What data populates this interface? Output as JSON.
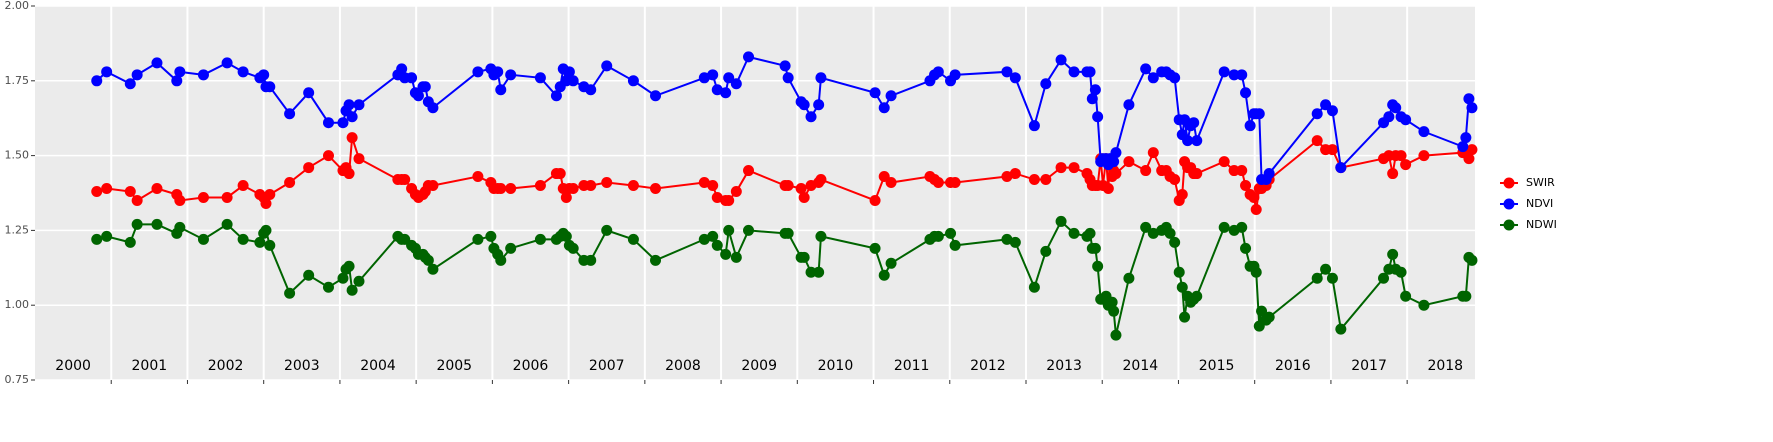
{
  "chart_data": {
    "type": "line",
    "x": [
      2000.81,
      2000.94,
      2001.25,
      2001.34,
      2001.6,
      2001.86,
      2001.9,
      2002.21,
      2002.52,
      2002.73,
      2002.95,
      2003.0,
      2003.03,
      2003.08,
      2003.34,
      2003.59,
      2003.85,
      2004.04,
      2004.08,
      2004.12,
      2004.16,
      2004.25,
      2004.76,
      2004.81,
      2004.85,
      2004.94,
      2004.99,
      2005.03,
      2005.09,
      2005.12,
      2005.16,
      2005.22,
      2005.81,
      2005.98,
      2006.02,
      2006.07,
      2006.11,
      2006.24,
      2006.63,
      2006.84,
      2006.89,
      2006.93,
      2006.97,
      2007.01,
      2007.06,
      2007.2,
      2007.29,
      2007.5,
      2007.85,
      2008.14,
      2008.78,
      2008.89,
      2008.95,
      2009.06,
      2009.1,
      2009.2,
      2009.36,
      2009.84,
      2009.88,
      2010.05,
      2010.09,
      2010.18,
      2010.28,
      2010.31,
      2011.02,
      2011.14,
      2011.23,
      2011.74,
      2011.8,
      2011.85,
      2012.01,
      2012.07,
      2012.75,
      2012.86,
      2013.11,
      2013.26,
      2013.46,
      2013.63,
      2013.8,
      2013.84,
      2013.87,
      2013.91,
      2013.94,
      2013.98,
      2014.01,
      2014.05,
      2014.08,
      2014.1,
      2014.13,
      2014.15,
      2014.18,
      2014.35,
      2014.57,
      2014.67,
      2014.78,
      2014.84,
      2014.89,
      2014.95,
      2015.01,
      2015.05,
      2015.08,
      2015.12,
      2015.16,
      2015.2,
      2015.24,
      2015.6,
      2015.73,
      2015.83,
      2015.88,
      2015.94,
      2015.99,
      2016.02,
      2016.06,
      2016.09,
      2016.15,
      2016.19,
      2016.82,
      2016.93,
      2017.02,
      2017.13,
      2017.69,
      2017.76,
      2017.81,
      2017.85,
      2017.92,
      2017.98,
      2018.22,
      2018.73,
      2018.77,
      2018.81,
      2018.85
    ],
    "series": [
      {
        "name": "SWIR",
        "color": "#ff0000",
        "values": [
          1.38,
          1.39,
          1.38,
          1.35,
          1.39,
          1.37,
          1.35,
          1.36,
          1.36,
          1.4,
          1.37,
          1.36,
          1.34,
          1.37,
          1.41,
          1.46,
          1.5,
          1.45,
          1.46,
          1.44,
          1.56,
          1.49,
          1.42,
          1.42,
          1.42,
          1.39,
          1.37,
          1.36,
          1.37,
          1.38,
          1.4,
          1.4,
          1.43,
          1.41,
          1.39,
          1.39,
          1.39,
          1.39,
          1.4,
          1.44,
          1.44,
          1.39,
          1.36,
          1.39,
          1.39,
          1.4,
          1.4,
          1.41,
          1.4,
          1.39,
          1.41,
          1.4,
          1.36,
          1.35,
          1.35,
          1.38,
          1.45,
          1.4,
          1.4,
          1.39,
          1.36,
          1.4,
          1.41,
          1.42,
          1.35,
          1.43,
          1.41,
          1.43,
          1.42,
          1.41,
          1.41,
          1.41,
          1.43,
          1.44,
          1.42,
          1.42,
          1.46,
          1.46,
          1.44,
          1.42,
          1.4,
          1.4,
          1.4,
          1.49,
          1.4,
          1.49,
          1.39,
          1.48,
          1.43,
          1.45,
          1.44,
          1.48,
          1.45,
          1.51,
          1.45,
          1.45,
          1.43,
          1.42,
          1.35,
          1.37,
          1.48,
          1.46,
          1.46,
          1.44,
          1.44,
          1.48,
          1.45,
          1.45,
          1.4,
          1.37,
          1.36,
          1.32,
          1.39,
          1.39,
          1.4,
          1.42,
          1.55,
          1.52,
          1.52,
          1.46,
          1.49,
          1.5,
          1.44,
          1.5,
          1.5,
          1.47,
          1.5,
          1.51,
          1.51,
          1.49,
          1.52
        ]
      },
      {
        "name": "NDVI",
        "color": "#0000ff",
        "values": [
          1.75,
          1.78,
          1.74,
          1.77,
          1.81,
          1.75,
          1.78,
          1.77,
          1.81,
          1.78,
          1.76,
          1.77,
          1.73,
          1.73,
          1.64,
          1.71,
          1.61,
          1.61,
          1.65,
          1.67,
          1.63,
          1.67,
          1.77,
          1.79,
          1.76,
          1.76,
          1.71,
          1.7,
          1.73,
          1.73,
          1.68,
          1.66,
          1.78,
          1.79,
          1.77,
          1.78,
          1.72,
          1.77,
          1.76,
          1.7,
          1.73,
          1.79,
          1.75,
          1.78,
          1.75,
          1.73,
          1.72,
          1.8,
          1.75,
          1.7,
          1.76,
          1.77,
          1.72,
          1.71,
          1.76,
          1.74,
          1.83,
          1.8,
          1.76,
          1.68,
          1.67,
          1.63,
          1.67,
          1.76,
          1.71,
          1.66,
          1.7,
          1.75,
          1.77,
          1.78,
          1.75,
          1.77,
          1.78,
          1.76,
          1.6,
          1.74,
          1.82,
          1.78,
          1.78,
          1.78,
          1.69,
          1.72,
          1.63,
          1.48,
          1.49,
          1.49,
          1.47,
          1.49,
          1.49,
          1.48,
          1.51,
          1.67,
          1.79,
          1.76,
          1.78,
          1.78,
          1.77,
          1.76,
          1.62,
          1.57,
          1.62,
          1.55,
          1.6,
          1.61,
          1.55,
          1.78,
          1.77,
          1.77,
          1.71,
          1.6,
          1.64,
          1.64,
          1.64,
          1.42,
          1.42,
          1.44,
          1.64,
          1.67,
          1.65,
          1.46,
          1.61,
          1.63,
          1.67,
          1.66,
          1.63,
          1.62,
          1.58,
          1.53,
          1.56,
          1.69,
          1.66
        ]
      },
      {
        "name": "NDWI",
        "color": "#006400",
        "values": [
          1.22,
          1.23,
          1.21,
          1.27,
          1.27,
          1.24,
          1.26,
          1.22,
          1.27,
          1.22,
          1.21,
          1.24,
          1.25,
          1.2,
          1.04,
          1.1,
          1.06,
          1.09,
          1.12,
          1.13,
          1.05,
          1.08,
          1.23,
          1.22,
          1.22,
          1.2,
          1.19,
          1.17,
          1.17,
          1.16,
          1.15,
          1.12,
          1.22,
          1.23,
          1.19,
          1.17,
          1.15,
          1.19,
          1.22,
          1.22,
          1.23,
          1.24,
          1.23,
          1.2,
          1.19,
          1.15,
          1.15,
          1.25,
          1.22,
          1.15,
          1.22,
          1.23,
          1.2,
          1.17,
          1.25,
          1.16,
          1.25,
          1.24,
          1.24,
          1.16,
          1.16,
          1.11,
          1.11,
          1.23,
          1.19,
          1.1,
          1.14,
          1.22,
          1.23,
          1.23,
          1.24,
          1.2,
          1.22,
          1.21,
          1.06,
          1.18,
          1.28,
          1.24,
          1.23,
          1.24,
          1.19,
          1.19,
          1.13,
          1.02,
          1.02,
          1.03,
          1.0,
          1.01,
          1.01,
          0.98,
          0.9,
          1.09,
          1.26,
          1.24,
          1.25,
          1.26,
          1.24,
          1.21,
          1.11,
          1.06,
          0.96,
          1.03,
          1.01,
          1.02,
          1.03,
          1.26,
          1.25,
          1.26,
          1.19,
          1.13,
          1.13,
          1.11,
          0.93,
          0.98,
          0.95,
          0.96,
          1.09,
          1.12,
          1.09,
          0.92,
          1.09,
          1.12,
          1.17,
          1.12,
          1.11,
          1.03,
          1.0,
          1.03,
          1.03,
          1.16,
          1.15
        ]
      }
    ],
    "xlim": [
      2000,
      2018.89
    ],
    "xticks": [
      2001,
      2002,
      2003,
      2004,
      2005,
      2006,
      2007,
      2008,
      2009,
      2010,
      2011,
      2012,
      2013,
      2014,
      2015,
      2016,
      2017,
      2018
    ],
    "year_labels": [
      {
        "value": 2000.5,
        "label": "2000"
      },
      {
        "value": 2001.5,
        "label": "2001"
      },
      {
        "value": 2002.5,
        "label": "2002"
      },
      {
        "value": 2003.5,
        "label": "2003"
      },
      {
        "value": 2004.5,
        "label": "2004"
      },
      {
        "value": 2005.5,
        "label": "2005"
      },
      {
        "value": 2006.5,
        "label": "2006"
      },
      {
        "value": 2007.5,
        "label": "2007"
      },
      {
        "value": 2008.5,
        "label": "2008"
      },
      {
        "value": 2009.5,
        "label": "2009"
      },
      {
        "value": 2010.5,
        "label": "2010"
      },
      {
        "value": 2011.5,
        "label": "2011"
      },
      {
        "value": 2012.5,
        "label": "2012"
      },
      {
        "value": 2013.5,
        "label": "2013"
      },
      {
        "value": 2014.5,
        "label": "2014"
      },
      {
        "value": 2015.5,
        "label": "2015"
      },
      {
        "value": 2016.5,
        "label": "2016"
      },
      {
        "value": 2017.5,
        "label": "2017"
      },
      {
        "value": 2018.5,
        "label": "2018"
      }
    ],
    "ylim": [
      0.75,
      2.0
    ],
    "yticks": [
      0.75,
      {
        "value": 1,
        "label": "1.00"
      },
      1.25,
      {
        "value": 1.5,
        "label": "1.50"
      },
      1.75,
      {
        "value": 2,
        "label": "2.00"
      }
    ],
    "grid": true,
    "legend": "right"
  }
}
